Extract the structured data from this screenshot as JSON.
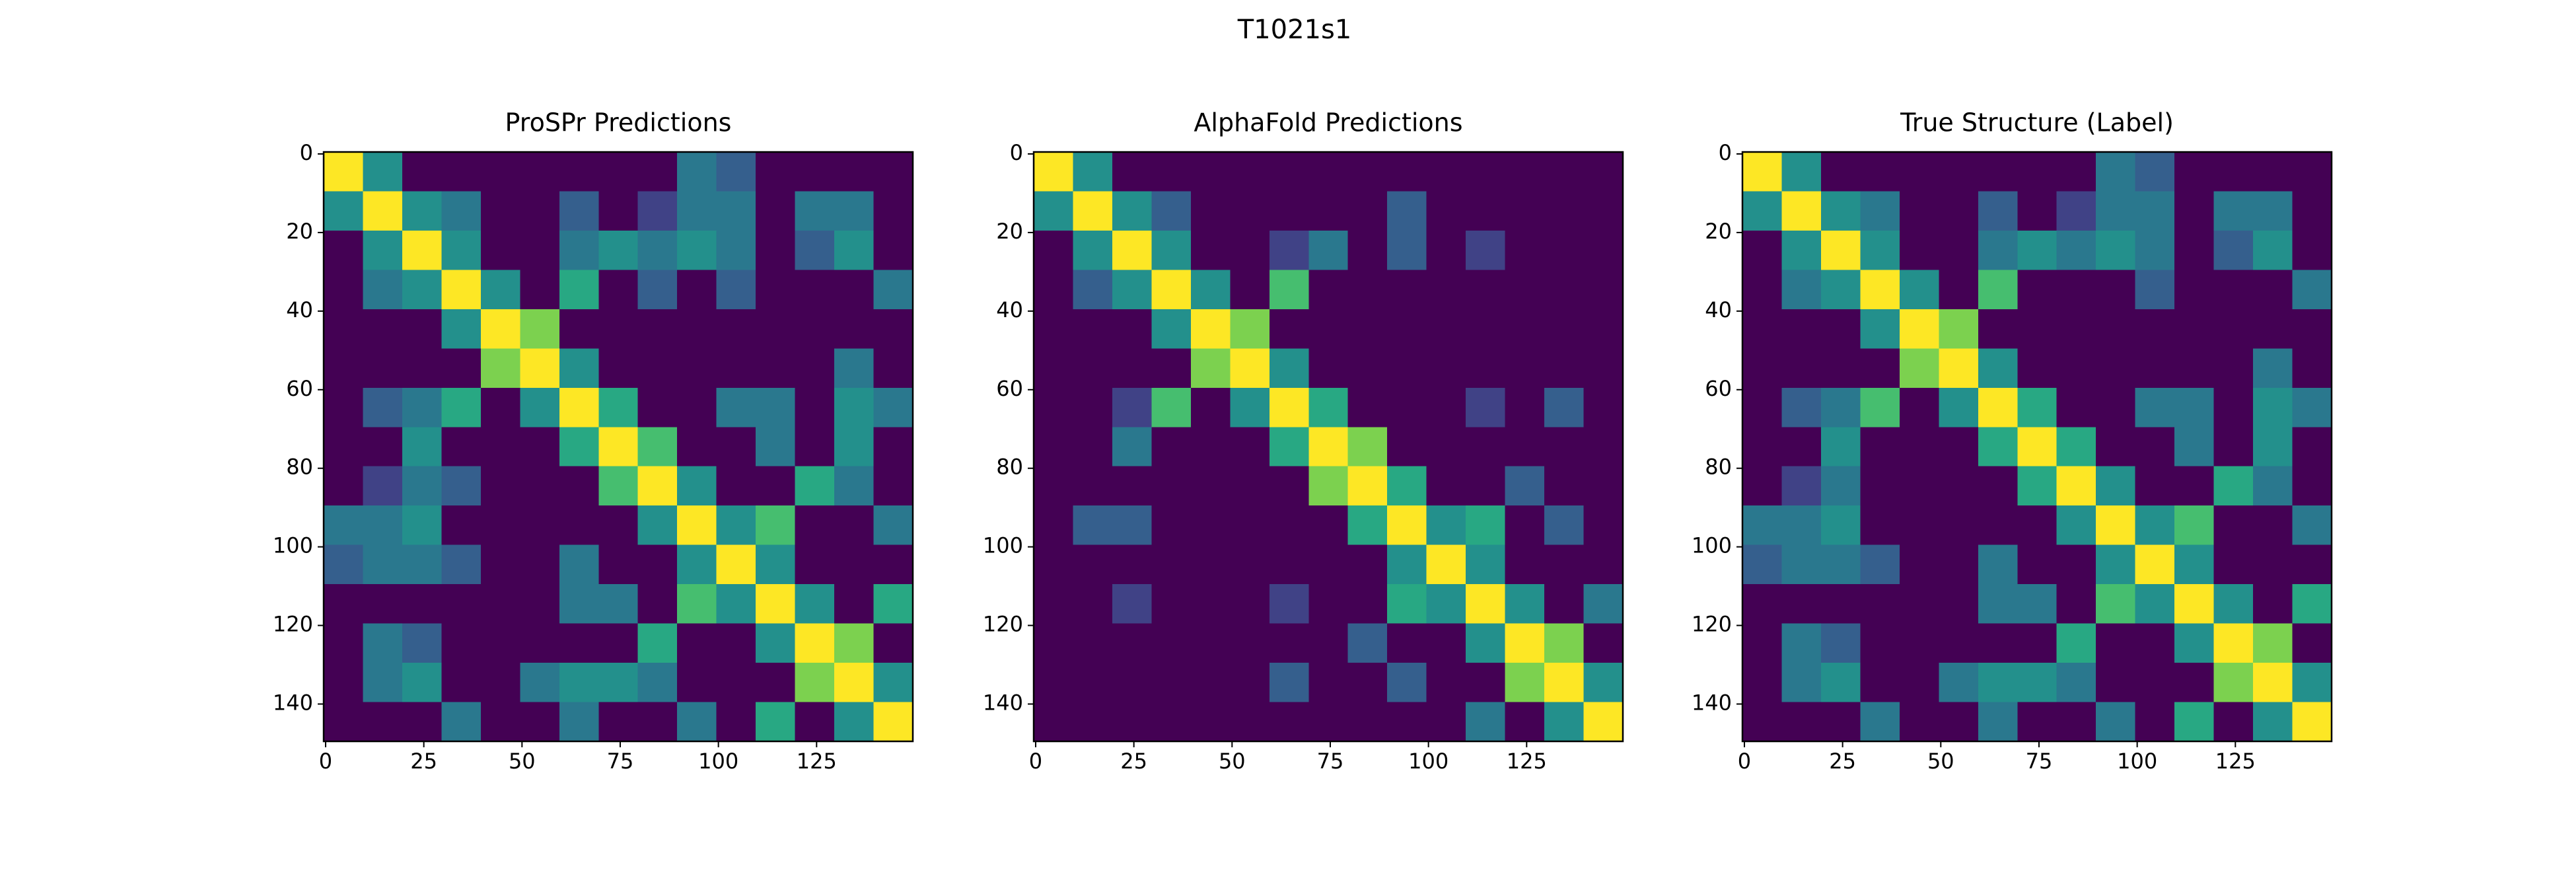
{
  "title": "T1021s1",
  "chart_data": [
    {
      "type": "heatmap",
      "title": "ProSPr Predictions",
      "colormap": "viridis",
      "xlim": [
        -0.5,
        149.5
      ],
      "ylim": [
        149.5,
        -0.5
      ],
      "xticks": [
        0,
        25,
        50,
        75,
        100,
        125
      ],
      "yticks": [
        0,
        20,
        40,
        60,
        80,
        100,
        120,
        140
      ],
      "values": [
        [
          1,
          0.5,
          0,
          0,
          0,
          0,
          0,
          0,
          0,
          0.4,
          0.3,
          0,
          0,
          0,
          0
        ],
        [
          0.5,
          1,
          0.5,
          0.4,
          0,
          0,
          0.3,
          0,
          0.2,
          0.4,
          0.4,
          0,
          0.4,
          0.4,
          0
        ],
        [
          0,
          0.5,
          1,
          0.5,
          0,
          0,
          0.4,
          0.5,
          0.4,
          0.5,
          0.4,
          0,
          0.3,
          0.5,
          0
        ],
        [
          0,
          0.4,
          0.5,
          1,
          0.5,
          0,
          0.6,
          0,
          0.3,
          0,
          0.3,
          0,
          0,
          0,
          0.4
        ],
        [
          0,
          0,
          0,
          0.5,
          1,
          0.8,
          0,
          0,
          0,
          0,
          0,
          0,
          0,
          0,
          0
        ],
        [
          0,
          0,
          0,
          0,
          0.8,
          1,
          0.5,
          0,
          0,
          0,
          0,
          0,
          0,
          0.4,
          0
        ],
        [
          0,
          0.3,
          0.4,
          0.6,
          0,
          0.5,
          1,
          0.6,
          0,
          0,
          0.4,
          0.4,
          0,
          0.5,
          0.4
        ],
        [
          0,
          0,
          0.5,
          0,
          0,
          0,
          0.6,
          1,
          0.7,
          0,
          0,
          0.4,
          0,
          0.5,
          0
        ],
        [
          0,
          0.2,
          0.4,
          0.3,
          0,
          0,
          0,
          0.7,
          1,
          0.5,
          0,
          0,
          0.6,
          0.4,
          0
        ],
        [
          0.4,
          0.4,
          0.5,
          0,
          0,
          0,
          0,
          0,
          0.5,
          1,
          0.5,
          0.7,
          0,
          0,
          0.4
        ],
        [
          0.3,
          0.4,
          0.4,
          0.3,
          0,
          0,
          0.4,
          0,
          0,
          0.5,
          1,
          0.5,
          0,
          0,
          0
        ],
        [
          0,
          0,
          0,
          0,
          0,
          0,
          0.4,
          0.4,
          0,
          0.7,
          0.5,
          1,
          0.5,
          0,
          0.6
        ],
        [
          0,
          0.4,
          0.3,
          0,
          0,
          0,
          0,
          0,
          0.6,
          0,
          0,
          0.5,
          1,
          0.8,
          0
        ],
        [
          0,
          0.4,
          0.5,
          0,
          0,
          0.4,
          0.5,
          0.5,
          0.4,
          0,
          0,
          0,
          0.8,
          1,
          0.5
        ],
        [
          0,
          0,
          0,
          0.4,
          0,
          0,
          0.4,
          0,
          0,
          0.4,
          0,
          0.6,
          0,
          0.5,
          1
        ]
      ]
    },
    {
      "type": "heatmap",
      "title": "AlphaFold Predictions",
      "colormap": "viridis",
      "xlim": [
        -0.5,
        149.5
      ],
      "ylim": [
        149.5,
        -0.5
      ],
      "xticks": [
        0,
        25,
        50,
        75,
        100,
        125
      ],
      "yticks": [
        0,
        20,
        40,
        60,
        80,
        100,
        120,
        140
      ],
      "values": [
        [
          1,
          0.5,
          0,
          0,
          0,
          0,
          0,
          0,
          0,
          0,
          0,
          0,
          0,
          0,
          0
        ],
        [
          0.5,
          1,
          0.5,
          0.3,
          0,
          0,
          0,
          0,
          0,
          0.3,
          0,
          0,
          0,
          0,
          0
        ],
        [
          0,
          0.5,
          1,
          0.5,
          0,
          0,
          0.2,
          0.4,
          0,
          0.3,
          0,
          0.2,
          0,
          0,
          0
        ],
        [
          0,
          0.3,
          0.5,
          1,
          0.5,
          0,
          0.7,
          0,
          0,
          0,
          0,
          0,
          0,
          0,
          0
        ],
        [
          0,
          0,
          0,
          0.5,
          1,
          0.8,
          0,
          0,
          0,
          0,
          0,
          0,
          0,
          0,
          0
        ],
        [
          0,
          0,
          0,
          0,
          0.8,
          1,
          0.5,
          0,
          0,
          0,
          0,
          0,
          0,
          0,
          0
        ],
        [
          0,
          0,
          0.2,
          0.7,
          0,
          0.5,
          1,
          0.6,
          0,
          0,
          0,
          0.2,
          0,
          0.3,
          0
        ],
        [
          0,
          0,
          0.4,
          0,
          0,
          0,
          0.6,
          1,
          0.8,
          0,
          0,
          0,
          0,
          0,
          0
        ],
        [
          0,
          0,
          0,
          0,
          0,
          0,
          0,
          0.8,
          1,
          0.6,
          0,
          0,
          0.3,
          0,
          0
        ],
        [
          0,
          0.3,
          0.3,
          0,
          0,
          0,
          0,
          0,
          0.6,
          1,
          0.5,
          0.6,
          0,
          0.3,
          0
        ],
        [
          0,
          0,
          0,
          0,
          0,
          0,
          0,
          0,
          0,
          0.5,
          1,
          0.5,
          0,
          0,
          0
        ],
        [
          0,
          0,
          0.2,
          0,
          0,
          0,
          0.2,
          0,
          0,
          0.6,
          0.5,
          1,
          0.5,
          0,
          0.4
        ],
        [
          0,
          0,
          0,
          0,
          0,
          0,
          0,
          0,
          0.3,
          0,
          0,
          0.5,
          1,
          0.8,
          0
        ],
        [
          0,
          0,
          0,
          0,
          0,
          0,
          0.3,
          0,
          0,
          0.3,
          0,
          0,
          0.8,
          1,
          0.5
        ],
        [
          0,
          0,
          0,
          0,
          0,
          0,
          0,
          0,
          0,
          0,
          0,
          0.4,
          0,
          0.5,
          1
        ]
      ]
    },
    {
      "type": "heatmap",
      "title": "True Structure (Label)",
      "colormap": "viridis",
      "xlim": [
        -0.5,
        149.5
      ],
      "ylim": [
        149.5,
        -0.5
      ],
      "xticks": [
        0,
        25,
        50,
        75,
        100,
        125
      ],
      "yticks": [
        0,
        20,
        40,
        60,
        80,
        100,
        120,
        140
      ],
      "values": [
        [
          1,
          0.5,
          0,
          0,
          0,
          0,
          0,
          0,
          0,
          0.4,
          0.3,
          0,
          0,
          0,
          0
        ],
        [
          0.5,
          1,
          0.5,
          0.4,
          0,
          0,
          0.3,
          0,
          0.2,
          0.4,
          0.4,
          0,
          0.4,
          0.4,
          0
        ],
        [
          0,
          0.5,
          1,
          0.5,
          0,
          0,
          0.4,
          0.5,
          0.4,
          0.5,
          0.4,
          0,
          0.3,
          0.5,
          0
        ],
        [
          0,
          0.4,
          0.5,
          1,
          0.5,
          0,
          0.7,
          0,
          0,
          0,
          0.3,
          0,
          0,
          0,
          0.4
        ],
        [
          0,
          0,
          0,
          0.5,
          1,
          0.8,
          0,
          0,
          0,
          0,
          0,
          0,
          0,
          0,
          0
        ],
        [
          0,
          0,
          0,
          0,
          0.8,
          1,
          0.5,
          0,
          0,
          0,
          0,
          0,
          0,
          0.4,
          0
        ],
        [
          0,
          0.3,
          0.4,
          0.7,
          0,
          0.5,
          1,
          0.6,
          0,
          0,
          0.4,
          0.4,
          0,
          0.5,
          0.4
        ],
        [
          0,
          0,
          0.5,
          0,
          0,
          0,
          0.6,
          1,
          0.6,
          0,
          0,
          0.4,
          0,
          0.5,
          0
        ],
        [
          0,
          0.2,
          0.4,
          0,
          0,
          0,
          0,
          0.6,
          1,
          0.5,
          0,
          0,
          0.6,
          0.4,
          0
        ],
        [
          0.4,
          0.4,
          0.5,
          0,
          0,
          0,
          0,
          0,
          0.5,
          1,
          0.5,
          0.7,
          0,
          0,
          0.4
        ],
        [
          0.3,
          0.4,
          0.4,
          0.3,
          0,
          0,
          0.4,
          0,
          0,
          0.5,
          1,
          0.5,
          0,
          0,
          0
        ],
        [
          0,
          0,
          0,
          0,
          0,
          0,
          0.4,
          0.4,
          0,
          0.7,
          0.5,
          1,
          0.5,
          0,
          0.6
        ],
        [
          0,
          0.4,
          0.3,
          0,
          0,
          0,
          0,
          0,
          0.6,
          0,
          0,
          0.5,
          1,
          0.8,
          0
        ],
        [
          0,
          0.4,
          0.5,
          0,
          0,
          0.4,
          0.5,
          0.5,
          0.4,
          0,
          0,
          0,
          0.8,
          1,
          0.5
        ],
        [
          0,
          0,
          0,
          0.4,
          0,
          0,
          0.4,
          0,
          0,
          0.4,
          0,
          0.6,
          0,
          0.5,
          1
        ]
      ]
    }
  ]
}
